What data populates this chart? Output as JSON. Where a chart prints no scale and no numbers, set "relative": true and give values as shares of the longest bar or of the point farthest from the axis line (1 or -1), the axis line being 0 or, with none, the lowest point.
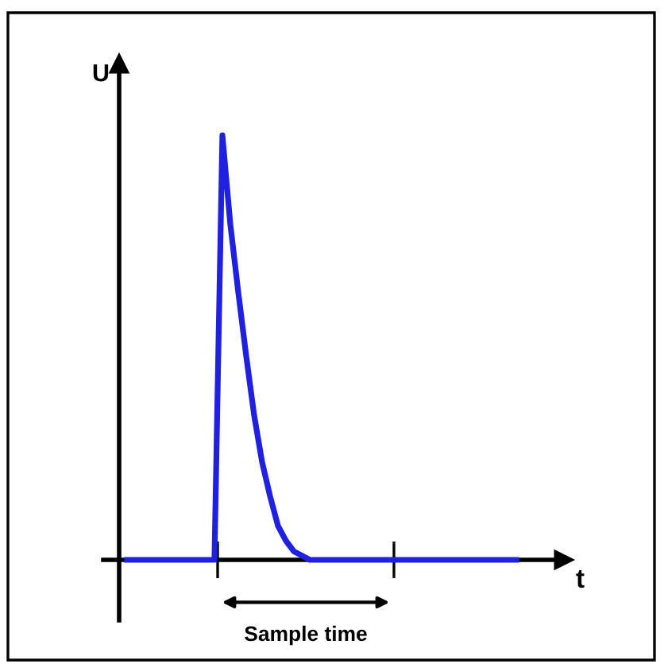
{
  "chart_data": {
    "type": "line",
    "relative": true,
    "xlabel": "t",
    "ylabel": "U",
    "categories": [
      null,
      null,
      null,
      null,
      null,
      null,
      null,
      null,
      null,
      null,
      null,
      null,
      null,
      null,
      null,
      null,
      null,
      null,
      null,
      null,
      null,
      null,
      null,
      null,
      null,
      null,
      null,
      null,
      null,
      null,
      null,
      null,
      null,
      null,
      null,
      null,
      null,
      null,
      null,
      null,
      null,
      null,
      null,
      null,
      null,
      null,
      null,
      null,
      null,
      null
    ],
    "series": [
      {
        "color": "#2020e0",
        "values": [
          0,
          0,
          0,
          0,
          0,
          0,
          0,
          0,
          0,
          0,
          0,
          0,
          1,
          0.79,
          0.63,
          0.48,
          0.34,
          0.23,
          0.15,
          0.08,
          0.045,
          0.02,
          0.01,
          0,
          0,
          0,
          0,
          0,
          0,
          0,
          0,
          0,
          0,
          0,
          0,
          0,
          0,
          0,
          0,
          0,
          0,
          0,
          0,
          0,
          0,
          0,
          0,
          0,
          0,
          0
        ]
      }
    ],
    "annotations": [
      "Sample time"
    ],
    "legend": false,
    "marker": "none",
    "line_style": "solid"
  }
}
